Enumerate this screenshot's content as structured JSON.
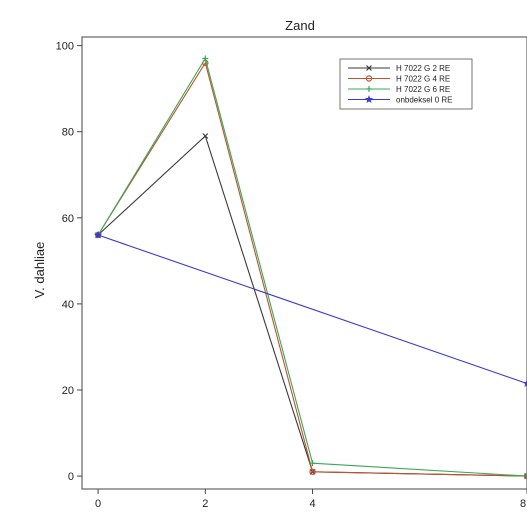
{
  "chart_data": {
    "type": "line",
    "title": "Zand",
    "xlabel": "",
    "ylabel": "V. dahliae",
    "xlim": [
      -0.3,
      8
    ],
    "ylim": [
      -3,
      102
    ],
    "xticks": [
      0,
      2,
      4,
      8
    ],
    "yticks": [
      0,
      20,
      40,
      60,
      80,
      100
    ],
    "grid": false,
    "legend_position": "top-right",
    "series": [
      {
        "name": "H 7022 G 2 RE",
        "x": [
          0,
          2,
          4,
          8
        ],
        "y": [
          56,
          79,
          1,
          0
        ],
        "color": "#3a3a3a",
        "marker": "x"
      },
      {
        "name": "H 7022 G 4 RE",
        "x": [
          0,
          2,
          4,
          8
        ],
        "y": [
          56,
          96,
          1,
          0
        ],
        "color": "#c0522d",
        "marker": "circle"
      },
      {
        "name": "H 7022 G 6 RE",
        "x": [
          0,
          2,
          4,
          8
        ],
        "y": [
          56,
          97,
          3,
          0
        ],
        "color": "#3aa85a",
        "marker": "plus"
      },
      {
        "name": "onbdeksel 0 RE",
        "x": [
          0,
          8
        ],
        "y": [
          56,
          21.5
        ],
        "color": "#3a3ad0",
        "marker": "star"
      }
    ]
  }
}
